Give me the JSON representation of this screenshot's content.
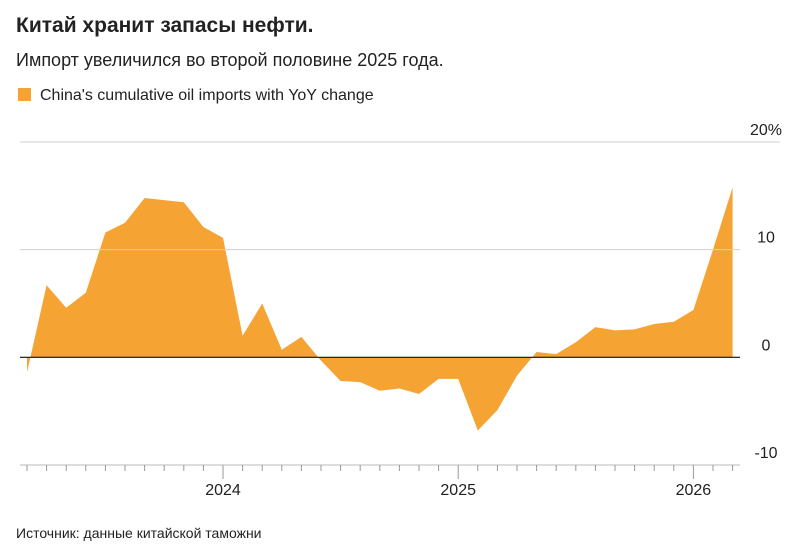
{
  "chart_data": {
    "type": "area",
    "title": "Китай хранит запасы нефти.",
    "subtitle": "Импорт увеличился во второй половине 2025 года.",
    "source": "Источник: данные китайской таможни",
    "categories": [
      null,
      null,
      null,
      null,
      null,
      null,
      null,
      null,
      null,
      null,
      "2024",
      null,
      null,
      null,
      null,
      null,
      null,
      null,
      null,
      null,
      null,
      null,
      "2025",
      null,
      null,
      null,
      null,
      null,
      null,
      null,
      null,
      null,
      null,
      null,
      "2026",
      null,
      null
    ],
    "series": [
      {
        "name": "China's cumulative oil imports with YoY change",
        "color": "#f5a333",
        "values": [
          -1.4,
          6.7,
          4.6,
          6.0,
          11.6,
          12.5,
          14.8,
          14.6,
          14.4,
          12.1,
          11.1,
          2.0,
          5.0,
          0.7,
          1.9,
          -0.3,
          -2.2,
          -2.3,
          -3.1,
          -2.9,
          -3.4,
          -2.0,
          -2.0,
          -6.8,
          -4.9,
          -1.7,
          0.5,
          0.3,
          1.4,
          2.8,
          2.5,
          2.6,
          3.1,
          3.3,
          4.4,
          10.0,
          15.8
        ]
      }
    ],
    "ylim": [
      -10,
      20
    ],
    "yticks": [
      -10,
      0,
      10,
      {
        "value": 20,
        "label": "20%"
      }
    ],
    "grid": true
  }
}
